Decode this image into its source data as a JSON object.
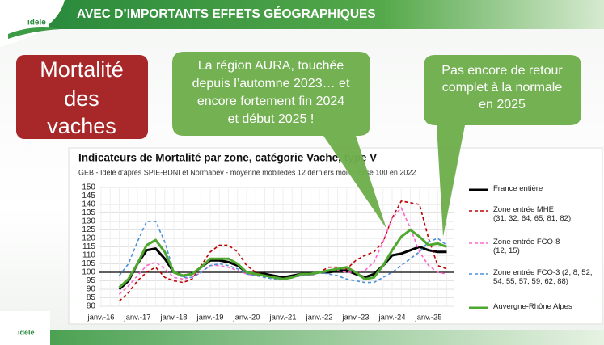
{
  "slide": {
    "header": "AVEC D’IMPORTANTS EFFETS GÉOGRAPHIQUES",
    "logo": "idele",
    "box": [
      "Mortalité",
      "des",
      "vaches"
    ],
    "callouts": [
      [
        "La région AURA, touchée",
        "depuis l’automne 2023… et",
        "encore fortement fin 2024",
        "et début 2025 !"
      ],
      [
        "Pas encore de retour",
        "complet à la normale",
        "en 2025"
      ]
    ]
  },
  "chart_data": {
    "type": "line",
    "title": "Indicateurs de Mortalité par zone, catégorie Vache, type V",
    "subtitle": "GEB - Idele d'après SPIE-BDNI et Normabev - moyenne mobiledes 12 derniers mois - base 100 en 2022",
    "categories": [
      "janv.-16",
      null,
      null,
      null,
      "janv.-17",
      null,
      null,
      null,
      "janv.-18",
      null,
      null,
      null,
      "janv.-19",
      null,
      null,
      null,
      "janv.-20",
      null,
      null,
      null,
      "janv.-21",
      null,
      null,
      null,
      "janv.-22",
      null,
      null,
      null,
      "janv.-23",
      null,
      null,
      null,
      "janv.-24",
      null,
      null,
      null,
      "janv.-25",
      null,
      null
    ],
    "ylim": [
      80,
      150
    ],
    "yticks": [
      80,
      85,
      90,
      95,
      100,
      105,
      110,
      115,
      120,
      125,
      130,
      135,
      140,
      145,
      150
    ],
    "grid": true,
    "reference_line": 100,
    "series": [
      {
        "name": "France entière",
        "color": "#000000",
        "dash": false,
        "values": [
          null,
          null,
          90,
          95,
          105,
          113,
          114,
          108,
          100,
          98,
          99,
          103,
          107,
          107,
          106,
          104,
          100,
          99,
          99,
          98,
          97,
          98,
          99,
          99,
          100,
          100,
          101,
          101,
          99,
          97,
          99,
          104,
          110,
          111,
          113,
          115,
          113,
          112,
          112
        ]
      },
      {
        "name": "Zone entrée MHE",
        "note": "(31, 32, 64, 65, 81, 82)",
        "color": "#c00000",
        "dash": true,
        "values": [
          null,
          null,
          83,
          88,
          95,
          100,
          103,
          97,
          95,
          94,
          96,
          104,
          112,
          116,
          116,
          112,
          104,
          100,
          98,
          97,
          96,
          97,
          98,
          98,
          100,
          103,
          103,
          102,
          107,
          110,
          112,
          118,
          132,
          142,
          141,
          140,
          120,
          104,
          102
        ]
      },
      {
        "name": "Zone entrée FCO-8",
        "note": "(12, 15)",
        "color": "#ff66cc",
        "dash": true,
        "values": [
          null,
          null,
          87,
          92,
          98,
          104,
          106,
          102,
          97,
          96,
          97,
          100,
          104,
          104,
          103,
          101,
          99,
          98,
          98,
          97,
          96,
          97,
          98,
          98,
          100,
          101,
          101,
          100,
          100,
          101,
          106,
          118,
          132,
          138,
          126,
          112,
          104,
          100,
          99
        ]
      },
      {
        "name": "Zone entrée FCO-3",
        "note": "(2, 8, 52, 54, 55, 57, 59, 62, 88)",
        "color": "#4a90d9",
        "dash": true,
        "values": [
          null,
          null,
          98,
          105,
          118,
          130,
          130,
          118,
          100,
          97,
          97,
          100,
          104,
          105,
          104,
          102,
          99,
          98,
          97,
          96,
          96,
          97,
          98,
          98,
          100,
          99,
          98,
          96,
          95,
          94,
          94,
          97,
          100,
          104,
          108,
          112,
          118,
          120,
          116
        ]
      },
      {
        "name": "Auvergne-Rhône Alpes",
        "color": "#4ea72e",
        "dash": false,
        "values": [
          null,
          null,
          91,
          96,
          105,
          116,
          119,
          112,
          100,
          98,
          99,
          103,
          108,
          108,
          108,
          105,
          100,
          99,
          98,
          97,
          96,
          97,
          99,
          99,
          100,
          101,
          102,
          103,
          100,
          96,
          97,
          104,
          113,
          121,
          125,
          121,
          116,
          117,
          115
        ]
      }
    ]
  }
}
